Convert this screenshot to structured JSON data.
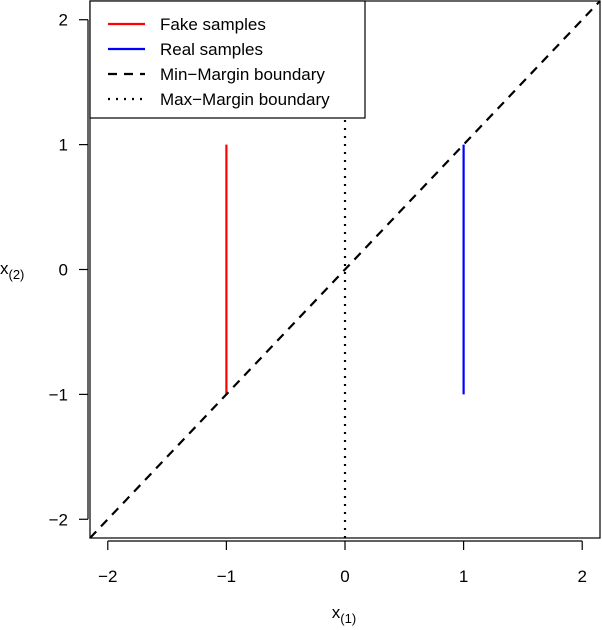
{
  "chart_data": {
    "type": "line",
    "title": "",
    "xlabel": "x",
    "xlabel_sub": "(1)",
    "ylabel": "x",
    "ylabel_sub": "(2)",
    "xlim": [
      -2.15,
      2.15
    ],
    "ylim": [
      -2.15,
      2.15
    ],
    "xticks": [
      -2,
      -1,
      0,
      1,
      2
    ],
    "yticks": [
      -2,
      -1,
      0,
      1,
      2
    ],
    "xtick_labels": [
      "−2",
      "−1",
      "0",
      "1",
      "2"
    ],
    "ytick_labels": [
      "−2",
      "−1",
      "0",
      "1",
      "2"
    ],
    "grid": false,
    "legend_position": "top-left",
    "series": [
      {
        "name": "Fake samples",
        "style": "solid",
        "color": "#ff0000",
        "points": [
          [
            -1,
            -1
          ],
          [
            -1,
            1
          ]
        ]
      },
      {
        "name": "Real samples",
        "style": "solid",
        "color": "#0000ff",
        "points": [
          [
            1,
            -1
          ],
          [
            1,
            1
          ]
        ]
      },
      {
        "name": "Min−Margin boundary",
        "style": "dashed",
        "color": "#000000",
        "points": [
          [
            -2.15,
            -2.15
          ],
          [
            2.15,
            2.15
          ]
        ]
      },
      {
        "name": "Max−Margin boundary",
        "style": "dotted",
        "color": "#000000",
        "points": [
          [
            0,
            -2.15
          ],
          [
            0,
            2.15
          ]
        ]
      }
    ]
  }
}
